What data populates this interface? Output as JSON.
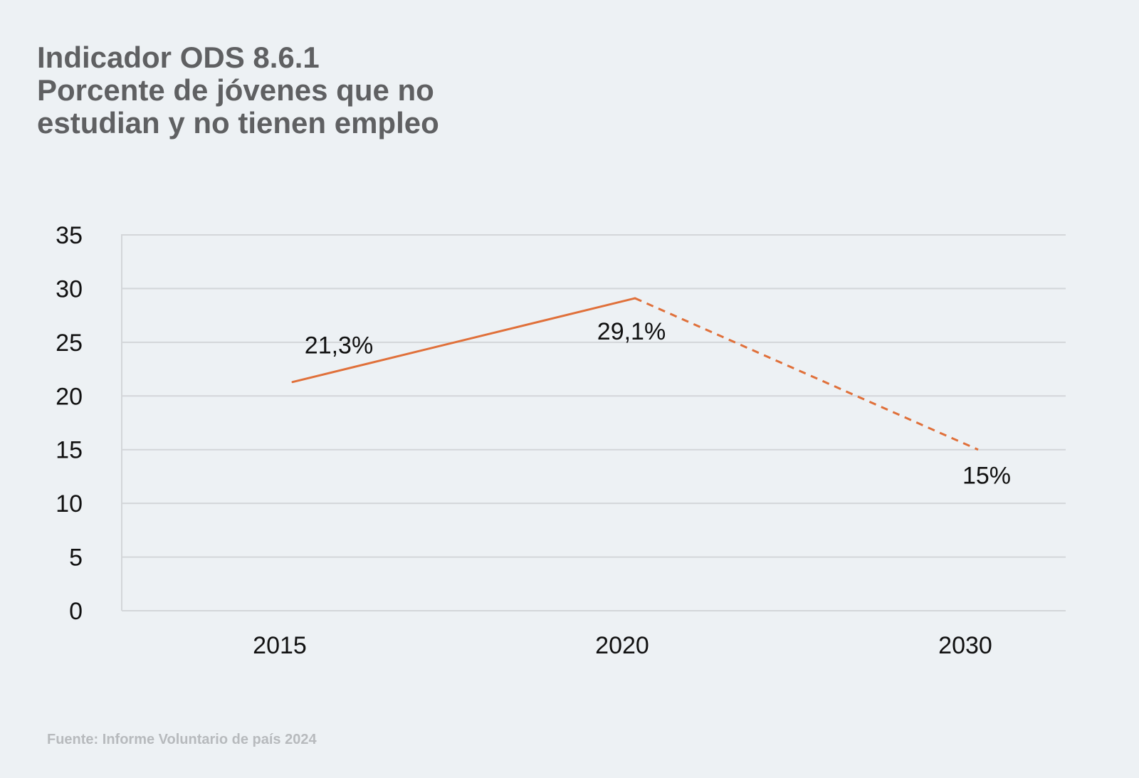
{
  "title": {
    "line1": "Indicador ODS 8.6.1",
    "line2": "Porcente de jóvenes que no",
    "line3": "estudian y no tienen empleo"
  },
  "source": "Fuente: Informe Voluntario de país 2024",
  "chart_data": {
    "type": "line",
    "categories": [
      "2015",
      "2020",
      "2030"
    ],
    "series": [
      {
        "values": [
          21.3,
          29.1,
          15
        ],
        "data_labels": [
          "21,3%",
          "29,1%",
          "15%"
        ],
        "color": "#e0703a",
        "styles": [
          "solid",
          "dashed"
        ]
      }
    ],
    "ylim": [
      0,
      35
    ],
    "yticks": [
      "0",
      "5",
      "10",
      "15",
      "20",
      "25",
      "30",
      "35"
    ],
    "grid": true,
    "legend": "none",
    "colors": {
      "line": "#e0703a",
      "grid": "#d3d6d9",
      "tick_text": "#111111",
      "background": "#edf1f4"
    }
  }
}
